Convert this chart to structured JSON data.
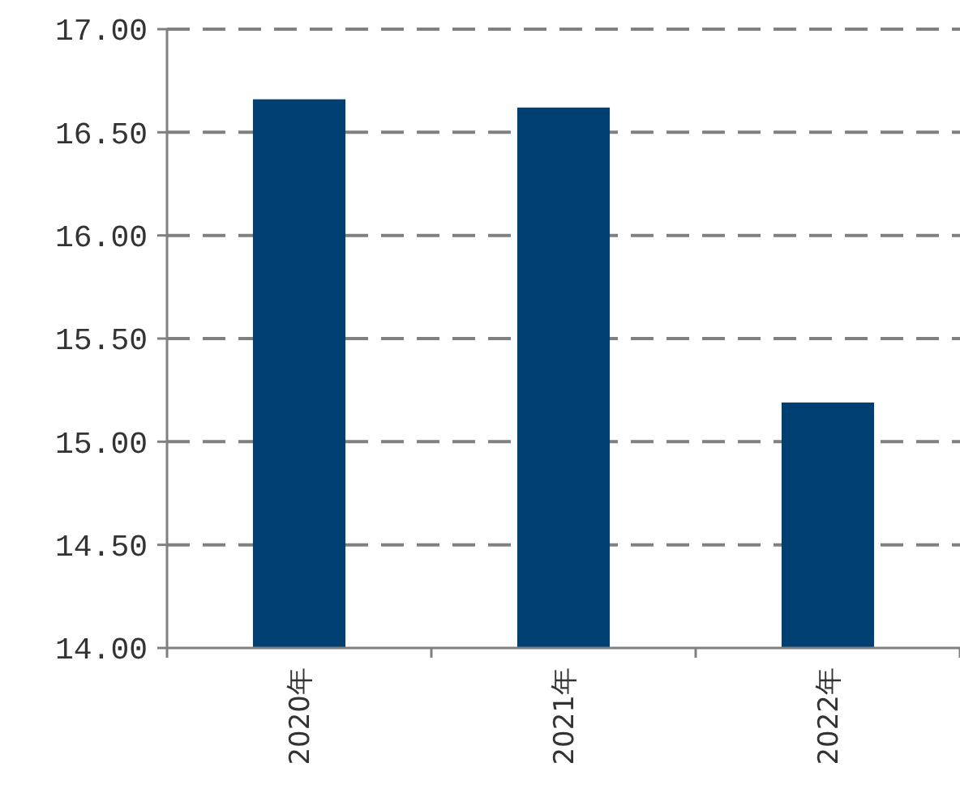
{
  "chart_data": {
    "type": "bar",
    "categories": [
      "2020年",
      "2021年",
      "2022年"
    ],
    "values": [
      16.66,
      16.62,
      15.19
    ],
    "color": "#003f72",
    "ylim": [
      14,
      17
    ],
    "yticks": [
      {
        "value": 14,
        "label": "14.00"
      },
      {
        "value": 14.5,
        "label": "14.50"
      },
      {
        "value": 15,
        "label": "15.00"
      },
      {
        "value": 15.5,
        "label": "15.50"
      },
      {
        "value": 16,
        "label": "16.00"
      },
      {
        "value": 16.5,
        "label": "16.50"
      },
      {
        "value": 17,
        "label": "17.00"
      }
    ],
    "grid": "y"
  }
}
